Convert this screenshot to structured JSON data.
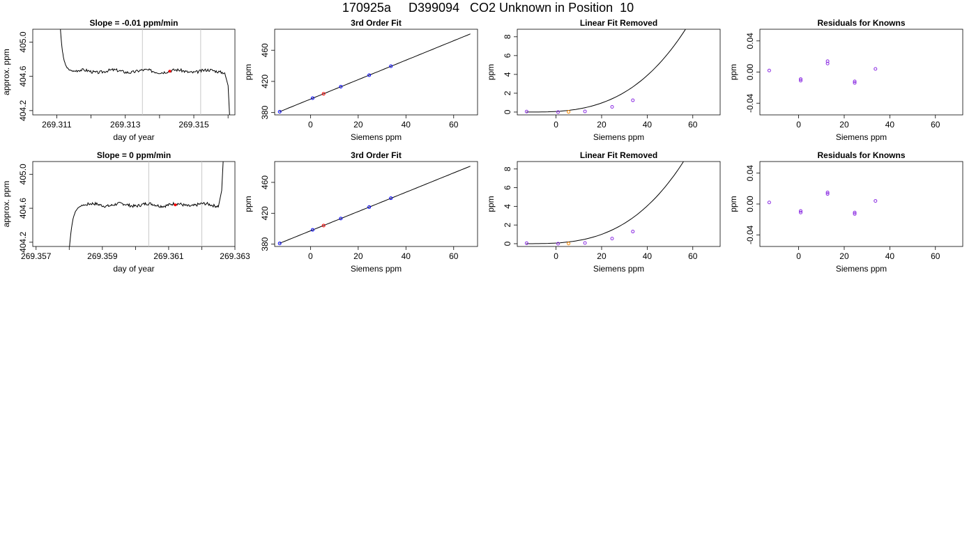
{
  "page": {
    "title": "170925a     D399094   CO2 Unknown in Position  10"
  },
  "colors": {
    "curve": "#000000",
    "known": "#0000ff",
    "unknown": "#ff0000",
    "unknown_lin": "#ff8c00",
    "residual": "#8a2be2",
    "marker_line": "#c8c8c8"
  },
  "chart_data": [
    {
      "type": "line",
      "title": "Slope =  -0.01  ppm/min",
      "xlabel": "day of year",
      "ylabel": "approx. ppm",
      "xlim": [
        269.3103,
        269.3162
      ],
      "ylim": [
        404.15,
        405.15
      ],
      "xticks": [
        269.31,
        269.311,
        269.312,
        269.313,
        269.314,
        269.315,
        269.316
      ],
      "xticklabels": [
        "",
        "269.311",
        "",
        "269.313",
        "",
        "269.315",
        ""
      ],
      "yticks": [
        404.2,
        404.6,
        405.0
      ],
      "yticklabels": [
        "404.2",
        "404.6",
        "405.0"
      ],
      "vlines": [
        269.3135,
        269.3152
      ],
      "marker": {
        "x": 269.3143,
        "y": 404.66
      },
      "trace_seed": 3,
      "trace": {
        "start_x": 269.3111,
        "start_y": 405.2,
        "drop_end_x": 269.3115,
        "plateau_y": 404.66,
        "plateau_end_x": 269.3159,
        "tail_x": 269.316,
        "tail_y": 404.1
      }
    },
    {
      "type": "scatter",
      "title": "3rd Order Fit",
      "xlabel": "Siemens ppm",
      "ylabel": "ppm",
      "xlim": [
        -15,
        70
      ],
      "ylim": [
        377,
        487
      ],
      "xticks": [
        0,
        20,
        40,
        60
      ],
      "xticklabels": [
        "0",
        "20",
        "40",
        "60"
      ],
      "yticks": [
        380,
        420,
        460
      ],
      "yticklabels": [
        "380",
        "420",
        "460"
      ],
      "curve": {
        "x0": -13,
        "x1": 67,
        "y0": 381,
        "y1": 481
      },
      "points": [
        {
          "x": -12.9,
          "y": 381.0,
          "group": "known"
        },
        {
          "x": 0.9,
          "y": 398.5,
          "group": "known"
        },
        {
          "x": 5.5,
          "y": 404.1,
          "group": "unknown"
        },
        {
          "x": 12.7,
          "y": 413.2,
          "group": "known"
        },
        {
          "x": 24.6,
          "y": 428.0,
          "group": "known"
        },
        {
          "x": 33.7,
          "y": 439.5,
          "group": "known"
        }
      ]
    },
    {
      "type": "scatter",
      "title": "Linear Fit Removed",
      "xlabel": "Siemens ppm",
      "ylabel": "ppm",
      "xlim": [
        -17,
        72
      ],
      "ylim": [
        -0.3,
        8.8
      ],
      "xticks": [
        0,
        20,
        40,
        60
      ],
      "xticklabels": [
        "0",
        "20",
        "40",
        "60"
      ],
      "yticks": [
        0,
        2,
        4,
        6,
        8
      ],
      "yticklabels": [
        "0",
        "2",
        "4",
        "6",
        "8"
      ],
      "curve": {
        "x0": -13,
        "x1": 68,
        "a": 2.5e-05,
        "b": 6e-05,
        "c": 0.0
      },
      "points": [
        {
          "x": -12.9,
          "y": 0.05,
          "group": "residual"
        },
        {
          "x": 0.9,
          "y": 0.0,
          "group": "residual"
        },
        {
          "x": 5.5,
          "y": 0.02,
          "group": "unknown_lin"
        },
        {
          "x": 12.7,
          "y": 0.07,
          "group": "residual"
        },
        {
          "x": 24.6,
          "y": 0.55,
          "group": "residual"
        },
        {
          "x": 33.7,
          "y": 1.25,
          "group": "residual"
        }
      ]
    },
    {
      "type": "scatter",
      "title": "Residuals for Knowns",
      "xlabel": "Siemens ppm",
      "ylabel": "ppm",
      "xlim": [
        -17,
        72
      ],
      "ylim": [
        -0.055,
        0.055
      ],
      "xticks": [
        0,
        20,
        40,
        60
      ],
      "xticklabels": [
        "0",
        "20",
        "40",
        "60"
      ],
      "yticks": [
        -0.04,
        0.0,
        0.04
      ],
      "yticklabels": [
        "-0.04",
        "0.00",
        "0.04"
      ],
      "points": [
        {
          "x": -12.9,
          "y": 0.002,
          "group": "residual"
        },
        {
          "x": 0.9,
          "y": -0.009,
          "group": "residual"
        },
        {
          "x": 0.9,
          "y": -0.011,
          "group": "residual"
        },
        {
          "x": 12.7,
          "y": 0.014,
          "group": "residual"
        },
        {
          "x": 12.7,
          "y": 0.011,
          "group": "residual"
        },
        {
          "x": 24.6,
          "y": -0.012,
          "group": "residual"
        },
        {
          "x": 24.6,
          "y": -0.014,
          "group": "residual"
        },
        {
          "x": 33.7,
          "y": 0.004,
          "group": "residual"
        }
      ]
    },
    {
      "type": "line",
      "title": "Slope =  0  ppm/min",
      "xlabel": "day of year",
      "ylabel": "approx. ppm",
      "xlim": [
        269.3569,
        269.363
      ],
      "ylim": [
        404.15,
        405.15
      ],
      "xticks": [
        269.357,
        269.358,
        269.359,
        269.36,
        269.361,
        269.362,
        269.363
      ],
      "xticklabels": [
        "269.357",
        "",
        "269.359",
        "",
        "269.361",
        "",
        "269.363"
      ],
      "yticks": [
        404.2,
        404.6,
        405.0
      ],
      "yticklabels": [
        "404.2",
        "404.6",
        "405.0"
      ],
      "vlines": [
        269.3604,
        269.362
      ],
      "marker": {
        "x": 269.3612,
        "y": 404.64
      },
      "trace_seed": 7,
      "trace": {
        "start_x": 269.358,
        "start_y": 404.1,
        "drop_end_x": 269.3585,
        "plateau_y": 404.64,
        "plateau_end_x": 269.3625,
        "tail_x": 269.3626,
        "tail_y": 405.2
      }
    },
    {
      "type": "scatter",
      "title": "3rd Order Fit",
      "xlabel": "Siemens ppm",
      "ylabel": "ppm",
      "xlim": [
        -15,
        70
      ],
      "ylim": [
        377,
        487
      ],
      "xticks": [
        0,
        20,
        40,
        60
      ],
      "xticklabels": [
        "0",
        "20",
        "40",
        "60"
      ],
      "yticks": [
        380,
        420,
        460
      ],
      "yticklabels": [
        "380",
        "420",
        "460"
      ],
      "curve": {
        "x0": -13,
        "x1": 67,
        "y0": 381,
        "y1": 481
      },
      "points": [
        {
          "x": -12.9,
          "y": 381.0,
          "group": "known"
        },
        {
          "x": 0.9,
          "y": 398.5,
          "group": "known"
        },
        {
          "x": 5.5,
          "y": 404.1,
          "group": "unknown"
        },
        {
          "x": 12.7,
          "y": 413.2,
          "group": "known"
        },
        {
          "x": 24.6,
          "y": 428.0,
          "group": "known"
        },
        {
          "x": 33.7,
          "y": 439.5,
          "group": "known"
        }
      ]
    },
    {
      "type": "scatter",
      "title": "Linear Fit Removed",
      "xlabel": "Siemens ppm",
      "ylabel": "ppm",
      "xlim": [
        -17,
        72
      ],
      "ylim": [
        -0.3,
        8.8
      ],
      "xticks": [
        0,
        20,
        40,
        60
      ],
      "xticklabels": [
        "0",
        "20",
        "40",
        "60"
      ],
      "yticks": [
        0,
        2,
        4,
        6,
        8
      ],
      "yticklabels": [
        "0",
        "2",
        "4",
        "6",
        "8"
      ],
      "curve": {
        "x0": -13,
        "x1": 68,
        "a": 2.6e-05,
        "b": 6e-05,
        "c": 0.0
      },
      "points": [
        {
          "x": -12.9,
          "y": 0.05,
          "group": "residual"
        },
        {
          "x": 0.9,
          "y": 0.0,
          "group": "residual"
        },
        {
          "x": 5.5,
          "y": 0.02,
          "group": "unknown_lin"
        },
        {
          "x": 12.7,
          "y": 0.07,
          "group": "residual"
        },
        {
          "x": 24.6,
          "y": 0.55,
          "group": "residual"
        },
        {
          "x": 33.7,
          "y": 1.3,
          "group": "residual"
        }
      ]
    },
    {
      "type": "scatter",
      "title": "Residuals for Knowns",
      "xlabel": "Siemens ppm",
      "ylabel": "ppm",
      "xlim": [
        -17,
        72
      ],
      "ylim": [
        -0.055,
        0.055
      ],
      "xticks": [
        0,
        20,
        40,
        60
      ],
      "xticklabels": [
        "0",
        "20",
        "40",
        "60"
      ],
      "yticks": [
        -0.04,
        0.0,
        0.04
      ],
      "yticklabels": [
        "-0.04",
        "0.00",
        "0.04"
      ],
      "points": [
        {
          "x": -12.9,
          "y": 0.002,
          "group": "residual"
        },
        {
          "x": 0.9,
          "y": -0.009,
          "group": "residual"
        },
        {
          "x": 0.9,
          "y": -0.011,
          "group": "residual"
        },
        {
          "x": 12.7,
          "y": 0.015,
          "group": "residual"
        },
        {
          "x": 12.7,
          "y": 0.013,
          "group": "residual"
        },
        {
          "x": 24.6,
          "y": -0.011,
          "group": "residual"
        },
        {
          "x": 24.6,
          "y": -0.013,
          "group": "residual"
        },
        {
          "x": 33.7,
          "y": 0.004,
          "group": "residual"
        }
      ]
    }
  ]
}
